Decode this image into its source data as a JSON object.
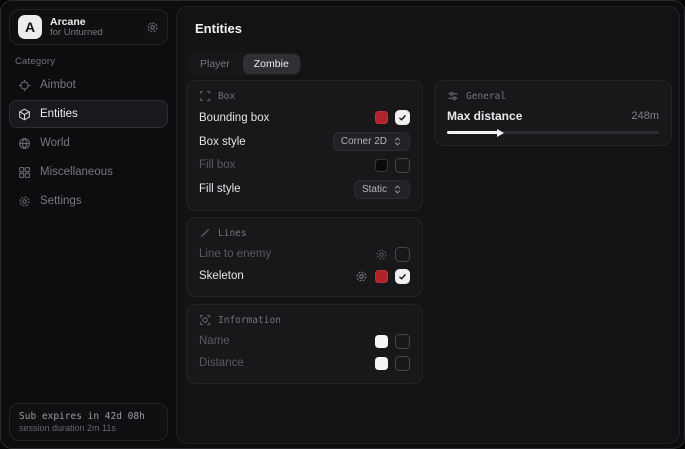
{
  "colors": {
    "accent_red": "#b2222a",
    "swatch_black": "#0b0b0d",
    "swatch_white": "#f5f5f5",
    "panel_bg": "#131316",
    "card_bg": "#18181b"
  },
  "sidebar": {
    "brand": {
      "logo_letter": "A",
      "name": "Arcane",
      "subtitle": "for Unturned"
    },
    "category_label": "Category",
    "items": [
      {
        "label": "Aimbot",
        "icon": "crosshair-icon",
        "active": false
      },
      {
        "label": "Entities",
        "icon": "cube-icon",
        "active": true
      },
      {
        "label": "World",
        "icon": "globe-icon",
        "active": false
      },
      {
        "label": "Miscellaneous",
        "icon": "grid-icon",
        "active": false
      },
      {
        "label": "Settings",
        "icon": "gear-icon",
        "active": false
      }
    ],
    "footer": {
      "sub_expiry": "Sub expires in 42d 08h",
      "session_duration": "session duration 2m 11s"
    }
  },
  "main": {
    "title": "Entities",
    "tabs": [
      {
        "label": "Player",
        "active": false
      },
      {
        "label": "Zombie",
        "active": true
      }
    ],
    "box_card": {
      "header": "Box",
      "rows": [
        {
          "label": "Bounding box",
          "enabled": true,
          "swatch": "#b2222a",
          "checked": true
        },
        {
          "label": "Box style",
          "enabled": true,
          "dropdown": "Corner 2D"
        },
        {
          "label": "Fill box",
          "enabled": false,
          "swatch": "#0b0b0d",
          "checked": false
        },
        {
          "label": "Fill style",
          "enabled": true,
          "dropdown": "Static"
        }
      ]
    },
    "lines_card": {
      "header": "Lines",
      "rows": [
        {
          "label": "Line to enemy",
          "enabled": false,
          "has_settings": true,
          "checked": false
        },
        {
          "label": "Skeleton",
          "enabled": true,
          "has_settings": true,
          "swatch": "#b2222a",
          "checked": true
        }
      ]
    },
    "info_card": {
      "header": "Information",
      "rows": [
        {
          "label": "Name",
          "enabled": false,
          "swatch": "#f5f5f5",
          "checked": false
        },
        {
          "label": "Distance",
          "enabled": false,
          "swatch": "#f5f5f5",
          "checked": false
        }
      ]
    },
    "general_card": {
      "header": "General",
      "slider": {
        "label": "Max distance",
        "value": "248m",
        "percent": 24
      }
    }
  }
}
